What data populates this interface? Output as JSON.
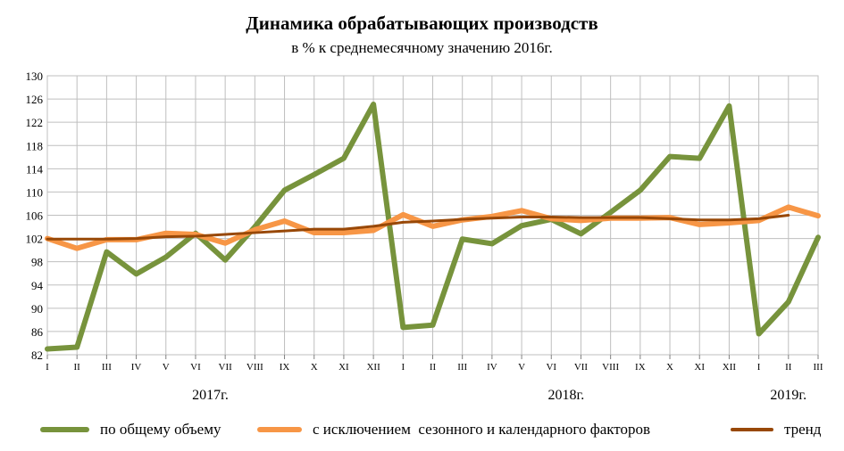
{
  "chart_data": {
    "type": "line",
    "title": "Динамика обрабатывающих производств",
    "subtitle": "в % к среднемесячному значению 2016г.",
    "categories": [
      "I",
      "II",
      "III",
      "IV",
      "V",
      "VI",
      "VII",
      "VIII",
      "IX",
      "X",
      "XI",
      "XII",
      "I",
      "II",
      "III",
      "IV",
      "V",
      "VI",
      "VII",
      "VIII",
      "IX",
      "X",
      "XI",
      "XII",
      "I",
      "II",
      "III"
    ],
    "year_labels": [
      {
        "label": "2017г.",
        "at_index": 5.5
      },
      {
        "label": "2018г.",
        "at_index": 17.5
      },
      {
        "label": "2019г.",
        "at_index": 25
      }
    ],
    "ylim": [
      82,
      130
    ],
    "yticks": [
      82,
      86,
      90,
      94,
      98,
      102,
      106,
      110,
      114,
      118,
      122,
      126,
      130
    ],
    "grid": true,
    "legend_position": "bottom",
    "series": [
      {
        "name": "по общему объему",
        "color": "#77933c",
        "values": [
          83.0,
          83.3,
          99.7,
          95.9,
          98.8,
          102.9,
          98.3,
          104.0,
          110.3,
          113.0,
          115.8,
          125.1,
          86.7,
          87.1,
          101.9,
          101.1,
          104.2,
          105.3,
          102.8,
          106.5,
          110.3,
          116.1,
          115.8,
          124.8,
          85.6,
          91.1,
          102.2
        ]
      },
      {
        "name": "с исключением  сезонного и календарного факторов",
        "color": "#f79646",
        "values": [
          102.0,
          100.3,
          101.8,
          101.8,
          102.9,
          102.7,
          101.2,
          103.5,
          105.0,
          103.0,
          103.0,
          103.4,
          106.1,
          104.1,
          105.2,
          105.8,
          106.8,
          105.4,
          105.1,
          105.5,
          105.5,
          105.6,
          104.4,
          104.7,
          105.1,
          107.4,
          105.9
        ]
      },
      {
        "name": "тренд",
        "color": "#984807",
        "values": [
          101.9,
          101.9,
          101.9,
          102.0,
          102.3,
          102.4,
          102.7,
          103.0,
          103.3,
          103.6,
          103.6,
          104.1,
          104.8,
          105.0,
          105.3,
          105.5,
          105.7,
          105.7,
          105.6,
          105.6,
          105.6,
          105.4,
          105.2,
          105.2,
          105.4,
          106.0,
          null
        ]
      }
    ]
  }
}
